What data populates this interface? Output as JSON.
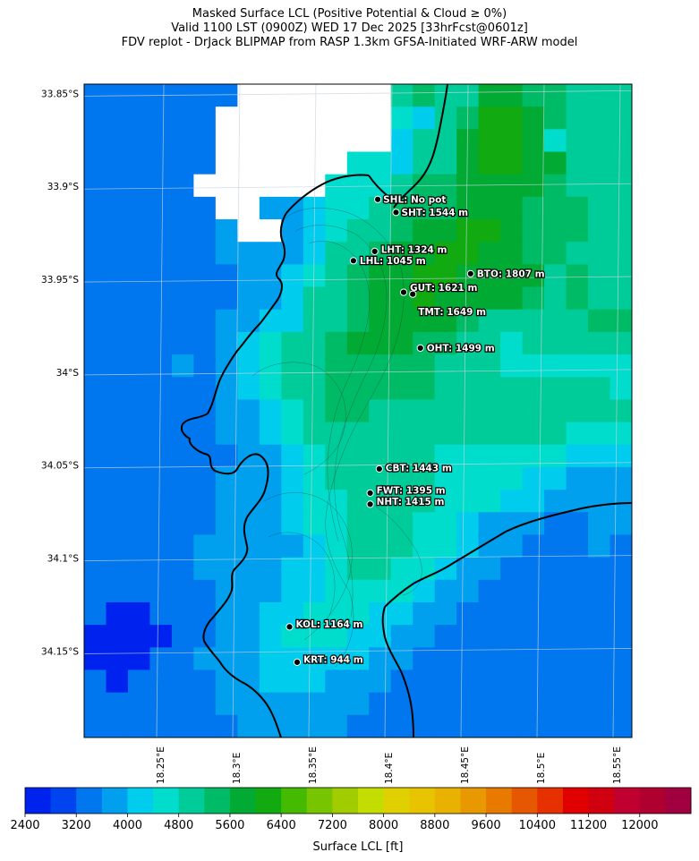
{
  "title": {
    "line1": "Masked Surface LCL (Positive Potential & Cloud ≥ 0%)",
    "line2": "Valid 1100 LST (0900Z) WED 17 Dec 2025 [33hrFcst@0601z]",
    "line3": "FDV replot - DrJack BLIPMAP from RASP 1.3km GFSA-Initiated WRF-ARW model"
  },
  "latitude_labels": [
    {
      "label": "33.85°S",
      "lat": -33.85
    },
    {
      "label": "33.9°S",
      "lat": -33.9
    },
    {
      "label": "33.95°S",
      "lat": -33.95
    },
    {
      "label": "34°S",
      "lat": -34.0
    },
    {
      "label": "34.05°S",
      "lat": -34.05
    },
    {
      "label": "34.1°S",
      "lat": -34.1
    },
    {
      "label": "34.15°S",
      "lat": -34.15
    }
  ],
  "longitude_labels": [
    {
      "label": "18.25°E",
      "lon": 18.25
    },
    {
      "label": "18.3°E",
      "lon": 18.3
    },
    {
      "label": "18.35°E",
      "lon": 18.35
    },
    {
      "label": "18.4°E",
      "lon": 18.4
    },
    {
      "label": "18.45°E",
      "lon": 18.45
    },
    {
      "label": "18.5°E",
      "lon": 18.5
    },
    {
      "label": "18.55°E",
      "lon": 18.55
    }
  ],
  "stations": [
    {
      "id": "SHL",
      "label": "SHL: No pot",
      "lon": 18.393,
      "lat": -33.907
    },
    {
      "id": "SHT",
      "label": "SHT: 1544 m",
      "lon": 18.405,
      "lat": -33.914
    },
    {
      "id": "LHT",
      "label": "LHT: 1324 m",
      "lon": 18.391,
      "lat": -33.935
    },
    {
      "id": "LHL",
      "label": "LHL: 1045 m",
      "lon": 18.377,
      "lat": -33.94
    },
    {
      "id": "BTO",
      "label": "BTO: 1807 m",
      "lon": 18.454,
      "lat": -33.947
    },
    {
      "id": "GUT",
      "label": "GUT: 1621 m",
      "lon": 18.41,
      "lat": -33.957
    },
    {
      "id": "TMT",
      "label": "TMT: 1649 m",
      "lon": 18.416,
      "lat": -33.958
    },
    {
      "id": "OHT",
      "label": "OHT: 1499 m",
      "lon": 18.421,
      "lat": -33.987
    },
    {
      "id": "CBT",
      "label": "CBT: 1443 m",
      "lon": 18.394,
      "lat": -34.052
    },
    {
      "id": "FWT",
      "label": "FWT: 1395 m",
      "lon": 18.388,
      "lat": -34.065
    },
    {
      "id": "NHT",
      "label": "NHT: 1415 m",
      "lon": 18.388,
      "lat": -34.071
    },
    {
      "id": "KOL",
      "label": "KOL: 1164 m",
      "lon": 18.335,
      "lat": -34.137
    },
    {
      "id": "KRT",
      "label": "KRT: 944 m",
      "lon": 18.34,
      "lat": -34.156
    }
  ],
  "colorbar": {
    "title": "Surface LCL [ft]",
    "min": 2400,
    "max": 12800,
    "step": 400,
    "tick_labels": [
      "2400",
      "3200",
      "4000",
      "4800",
      "5600",
      "6400",
      "7200",
      "8000",
      "8800",
      "9600",
      "10400",
      "11200",
      "12000"
    ],
    "colors": [
      "#0022ee",
      "#0044f0",
      "#0077ee",
      "#00a0ee",
      "#00ccee",
      "#00ddcc",
      "#00cc99",
      "#00bb66",
      "#00aa33",
      "#11aa11",
      "#44bb00",
      "#77c400",
      "#a0cc00",
      "#c4dd00",
      "#e0d000",
      "#e8c400",
      "#eab200",
      "#e89800",
      "#e87a00",
      "#e65800",
      "#e63000",
      "#e00000",
      "#d00010",
      "#c00030",
      "#b00030",
      "#a00040"
    ]
  },
  "lcl_field": {
    "unit": "ft",
    "masked_color": "#ffffff",
    "rows": 29,
    "cols": 25,
    "grid": [
      [
        3200,
        3200,
        3200,
        3200,
        3200,
        3200,
        3200,
        null,
        null,
        null,
        null,
        null,
        null,
        null,
        5000,
        5400,
        4800,
        4900,
        5700,
        5900,
        5400,
        5300,
        5100,
        5000,
        5000
      ],
      [
        3200,
        3200,
        3200,
        3200,
        3200,
        3200,
        null,
        null,
        null,
        null,
        null,
        null,
        null,
        null,
        4600,
        4300,
        4800,
        5300,
        6000,
        6000,
        5600,
        5300,
        5000,
        5000,
        5000
      ],
      [
        3200,
        3200,
        3200,
        3200,
        3200,
        3200,
        null,
        null,
        null,
        null,
        null,
        null,
        null,
        null,
        4200,
        4800,
        5000,
        5800,
        6000,
        6000,
        5600,
        4400,
        5000,
        5000,
        5000
      ],
      [
        3200,
        3200,
        3200,
        3200,
        3200,
        3200,
        null,
        null,
        null,
        null,
        null,
        null,
        4400,
        4400,
        4000,
        4800,
        4800,
        5900,
        6200,
        6000,
        5600,
        5600,
        5000,
        5000,
        5000
      ],
      [
        3200,
        3200,
        3200,
        3200,
        3200,
        null,
        null,
        null,
        null,
        null,
        null,
        4400,
        4400,
        4400,
        4800,
        5400,
        5400,
        5900,
        5800,
        5800,
        5600,
        5400,
        5000,
        5000,
        4800
      ],
      [
        3200,
        3200,
        3200,
        3200,
        3200,
        3200,
        null,
        null,
        3800,
        3800,
        4000,
        4400,
        4400,
        4800,
        5200,
        5400,
        5400,
        5900,
        5800,
        5800,
        5400,
        5400,
        5400,
        5000,
        4800
      ],
      [
        3200,
        3200,
        3200,
        3200,
        3200,
        3200,
        3800,
        null,
        null,
        3800,
        4300,
        4400,
        4800,
        5000,
        5400,
        5800,
        5800,
        6200,
        6200,
        5800,
        5400,
        5400,
        5400,
        5000,
        5000
      ],
      [
        3200,
        3200,
        3200,
        3200,
        3200,
        3200,
        3600,
        3800,
        3800,
        3800,
        4300,
        4800,
        4800,
        5300,
        5800,
        5800,
        6000,
        6200,
        5800,
        5800,
        5400,
        5200,
        5000,
        5000,
        4800
      ],
      [
        3200,
        3200,
        3200,
        3200,
        3200,
        3200,
        3200,
        3600,
        3800,
        4000,
        4600,
        4800,
        5300,
        5800,
        5800,
        6000,
        6200,
        5800,
        5800,
        5600,
        5600,
        5000,
        5400,
        5000,
        4800
      ],
      [
        3200,
        3200,
        3200,
        3200,
        3200,
        3200,
        3200,
        3600,
        3800,
        4200,
        4800,
        5000,
        5300,
        5800,
        5800,
        6000,
        5800,
        5700,
        5700,
        5700,
        5400,
        5000,
        5400,
        5000,
        5000
      ],
      [
        3200,
        3200,
        3200,
        3200,
        3200,
        3200,
        3600,
        3600,
        4000,
        4200,
        4800,
        5000,
        5200,
        5600,
        5800,
        5800,
        5600,
        5200,
        4900,
        5000,
        4800,
        5000,
        5000,
        5400,
        5400
      ],
      [
        3200,
        3200,
        3200,
        3200,
        3200,
        3200,
        3600,
        4000,
        4400,
        4800,
        5000,
        5200,
        5600,
        5600,
        5600,
        5500,
        5500,
        5000,
        4800,
        4600,
        4800,
        4800,
        4800,
        4800,
        4800
      ],
      [
        3200,
        3200,
        3200,
        3200,
        3600,
        3200,
        3600,
        4000,
        4400,
        4800,
        5000,
        5200,
        5400,
        5400,
        5500,
        5300,
        5000,
        4800,
        4800,
        4600,
        4600,
        4600,
        4600,
        4600,
        4600
      ],
      [
        3200,
        3200,
        3200,
        3200,
        3200,
        3200,
        3600,
        4000,
        4400,
        4800,
        5000,
        5200,
        5200,
        5200,
        5200,
        5200,
        5000,
        4800,
        4800,
        4800,
        4800,
        4800,
        4800,
        4800,
        4600
      ],
      [
        3200,
        3200,
        3200,
        3200,
        3200,
        3200,
        3600,
        3800,
        4200,
        4600,
        5000,
        5200,
        5200,
        5000,
        5000,
        5000,
        4900,
        4800,
        4800,
        4800,
        4800,
        4800,
        5000,
        4800,
        4800
      ],
      [
        3200,
        3200,
        3200,
        3200,
        3200,
        3200,
        3600,
        3800,
        4200,
        4600,
        4800,
        5000,
        5000,
        4800,
        4800,
        4800,
        4800,
        4800,
        4800,
        4800,
        4800,
        4800,
        4600,
        4600,
        4600
      ],
      [
        3200,
        3200,
        3200,
        3200,
        3200,
        3200,
        3200,
        3600,
        3800,
        4200,
        4600,
        4800,
        4800,
        4800,
        4800,
        4800,
        4600,
        4600,
        4400,
        4400,
        4400,
        4400,
        4000,
        4000,
        4000
      ],
      [
        3200,
        3200,
        3200,
        3200,
        3200,
        3200,
        3600,
        3600,
        3800,
        4200,
        4600,
        4800,
        4800,
        4800,
        4800,
        4800,
        4600,
        4400,
        4400,
        4400,
        4000,
        4000,
        3600,
        3600,
        3600
      ],
      [
        3200,
        3200,
        3200,
        3200,
        3200,
        3200,
        3600,
        3600,
        3800,
        4200,
        4400,
        4600,
        4800,
        4800,
        4800,
        4800,
        4600,
        4400,
        4400,
        4000,
        4000,
        3600,
        3600,
        3600,
        3600
      ],
      [
        3200,
        3200,
        3200,
        3200,
        3200,
        3200,
        3600,
        3600,
        3800,
        4000,
        4400,
        4600,
        4800,
        4800,
        4800,
        4600,
        4400,
        4200,
        3600,
        3600,
        3600,
        3200,
        3200,
        3600,
        3600
      ],
      [
        3200,
        3200,
        3200,
        3200,
        3200,
        3600,
        3600,
        3600,
        3600,
        3800,
        4200,
        4400,
        4800,
        4800,
        4800,
        4600,
        4400,
        4000,
        3600,
        3600,
        3200,
        3200,
        3200,
        3600,
        3200
      ],
      [
        3200,
        3200,
        3200,
        3200,
        3200,
        3600,
        3600,
        3600,
        3600,
        4000,
        4200,
        4400,
        4800,
        4800,
        4600,
        4400,
        4000,
        3600,
        3600,
        3200,
        3200,
        3200,
        3200,
        3200,
        3200
      ],
      [
        3200,
        3200,
        3200,
        3200,
        3200,
        3200,
        3600,
        3600,
        3600,
        4000,
        4200,
        4400,
        4600,
        4600,
        4400,
        4000,
        3600,
        3600,
        3200,
        3200,
        3200,
        3200,
        3200,
        3200,
        3200
      ],
      [
        3200,
        2400,
        2400,
        3200,
        3200,
        3200,
        3600,
        3600,
        4000,
        4200,
        4400,
        4400,
        4400,
        4200,
        4000,
        3600,
        3600,
        3200,
        3200,
        3200,
        3200,
        3200,
        3200,
        3200,
        3200
      ],
      [
        2400,
        2400,
        2400,
        2400,
        3200,
        3200,
        3600,
        3800,
        4200,
        4400,
        4400,
        4400,
        4200,
        4000,
        3600,
        3600,
        3200,
        3200,
        3200,
        3200,
        3200,
        3200,
        3200,
        3200,
        3200
      ],
      [
        2400,
        2400,
        2400,
        3200,
        3200,
        3600,
        3600,
        3800,
        4200,
        4200,
        4200,
        4000,
        4000,
        3600,
        3600,
        3200,
        3200,
        3200,
        3200,
        3200,
        3200,
        3200,
        3200,
        3200,
        3200
      ],
      [
        3200,
        2400,
        3200,
        3200,
        3200,
        3200,
        3600,
        3800,
        4000,
        4000,
        4000,
        3800,
        3600,
        3600,
        3200,
        3200,
        3200,
        3200,
        3200,
        3200,
        3200,
        3200,
        3200,
        3200,
        3200
      ],
      [
        3200,
        3200,
        3200,
        3200,
        3200,
        3200,
        3600,
        3600,
        3800,
        3800,
        3800,
        3600,
        3600,
        3200,
        3200,
        3200,
        3200,
        3200,
        3200,
        3200,
        3200,
        3200,
        3200,
        3200,
        3200
      ],
      [
        3200,
        3200,
        3200,
        3200,
        3200,
        3200,
        3200,
        3600,
        3600,
        3600,
        3600,
        3600,
        3200,
        3200,
        3200,
        3200,
        3200,
        3200,
        3200,
        3200,
        3200,
        3200,
        3200,
        3200,
        3200
      ]
    ]
  }
}
